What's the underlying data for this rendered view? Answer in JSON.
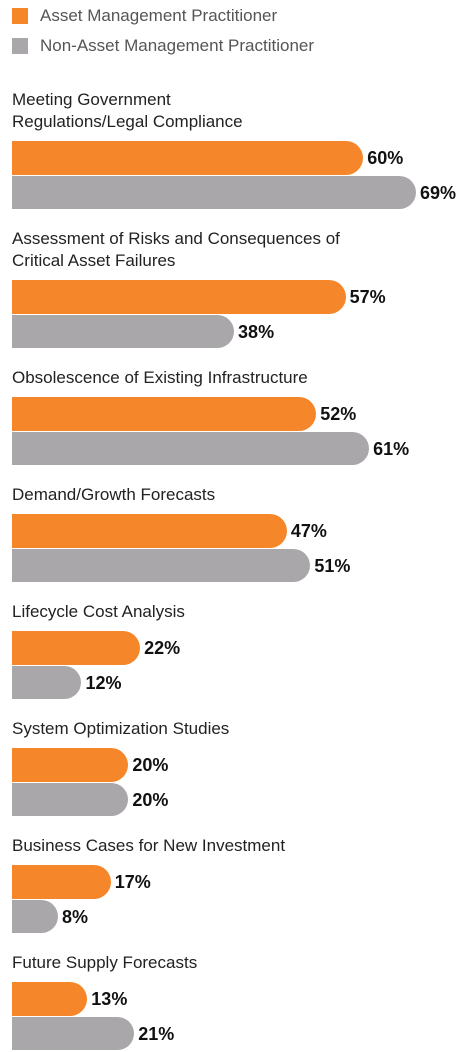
{
  "chart_data": {
    "type": "bar",
    "orientation": "horizontal",
    "categories": [
      "Meeting Government\nRegulations/Legal Compliance",
      "Assessment of Risks and Consequences of\nCritical Asset Failures",
      "Obsolescence of Existing Infrastructure",
      "Demand/Growth Forecasts",
      "Lifecycle Cost Analysis",
      "System Optimization Studies",
      "Business Cases for New Investment",
      "Future Supply Forecasts"
    ],
    "series": [
      {
        "name": "Asset Management Practitioner",
        "color": "#f5862a",
        "values": [
          60,
          57,
          52,
          47,
          22,
          20,
          17,
          13
        ],
        "value_labels": [
          "60%",
          "57%",
          "52%",
          "47%",
          "22%",
          "20%",
          "17%",
          "13%"
        ]
      },
      {
        "name": "Non-Asset Management Practitioner",
        "color": "#aaa7ab",
        "values": [
          69,
          38,
          61,
          51,
          12,
          20,
          8,
          21
        ],
        "value_labels": [
          "69%",
          "38%",
          "61%",
          "51%",
          "12%",
          "20%",
          "8%",
          "21%"
        ]
      }
    ],
    "legend": "top-left"
  }
}
